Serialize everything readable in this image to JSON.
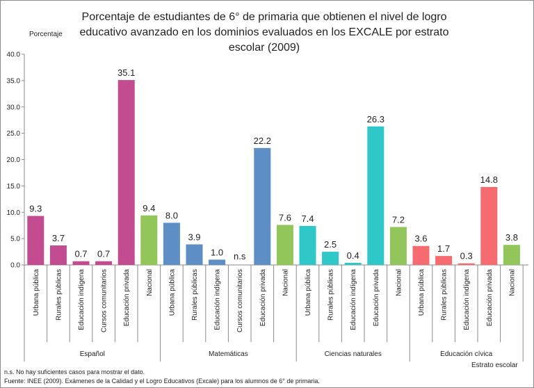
{
  "chart_data": {
    "type": "bar",
    "title": "Porcentaje de estudiantes de 6° de primaria que obtienen el nivel de logro educativo avanzado en los dominios evaluados en los EXCALE por estrato escolar (2009)",
    "ylabel": "Porcentaje",
    "xlabel": "Estrato escolar",
    "ylim": [
      0,
      40
    ],
    "yticks": [
      "0.0",
      "5.0",
      "10.0",
      "15.0",
      "20.0",
      "25.0",
      "30.0",
      "35.0",
      "40.0"
    ],
    "grid": false,
    "groups": [
      {
        "name": "Español",
        "bars": [
          {
            "label": "Urbana pública",
            "value": 9.3,
            "value_label": "9.3",
            "color": "#c34b8f"
          },
          {
            "label": "Rurales públicas",
            "value": 3.7,
            "value_label": "3.7",
            "color": "#c34b8f"
          },
          {
            "label": "Educación indígena",
            "value": 0.7,
            "value_label": "0.7",
            "color": "#c34b8f"
          },
          {
            "label": "Cursos comunitarios",
            "value": 0.7,
            "value_label": "0.7",
            "color": "#c34b8f"
          },
          {
            "label": "Educación privada",
            "value": 35.1,
            "value_label": "35.1",
            "color": "#c34b8f"
          },
          {
            "label": "Nacional",
            "value": 9.4,
            "value_label": "9.4",
            "color": "#92c65a"
          }
        ]
      },
      {
        "name": "Matemáticas",
        "bars": [
          {
            "label": "Urbana pública",
            "value": 8.0,
            "value_label": "8.0",
            "color": "#5d8ec6"
          },
          {
            "label": "Rurales públicas",
            "value": 3.9,
            "value_label": "3.9",
            "color": "#5d8ec6"
          },
          {
            "label": "Educación indígena",
            "value": 1.0,
            "value_label": "1.0",
            "color": "#5d8ec6"
          },
          {
            "label": "Cursos comunitarios",
            "value": null,
            "value_label": "n.s",
            "color": "#5d8ec6"
          },
          {
            "label": "Educación privada",
            "value": 22.2,
            "value_label": "22.2",
            "color": "#5d8ec6"
          },
          {
            "label": "Nacional",
            "value": 7.6,
            "value_label": "7.6",
            "color": "#92c65a"
          }
        ]
      },
      {
        "name": "Ciencias naturales",
        "bars": [
          {
            "label": "Urbana pública",
            "value": 7.4,
            "value_label": "7.4",
            "color": "#2ec8c8"
          },
          {
            "label": "Rurales públicas",
            "value": 2.5,
            "value_label": "2.5",
            "color": "#2ec8c8"
          },
          {
            "label": "Educación indígena",
            "value": 0.4,
            "value_label": "0.4",
            "color": "#2ec8c8"
          },
          {
            "label": "Educación privada",
            "value": 26.3,
            "value_label": "26.3",
            "color": "#2ec8c8"
          },
          {
            "label": "Nacional",
            "value": 7.2,
            "value_label": "7.2",
            "color": "#92c65a"
          }
        ]
      },
      {
        "name": "Educación cívica",
        "bars": [
          {
            "label": "Urbana pública",
            "value": 3.6,
            "value_label": "3.6",
            "color": "#f56b70"
          },
          {
            "label": "Rurales públicas",
            "value": 1.7,
            "value_label": "1.7",
            "color": "#f56b70"
          },
          {
            "label": "Educación indígena",
            "value": 0.3,
            "value_label": "0.3",
            "color": "#f56b70"
          },
          {
            "label": "Educación privada",
            "value": 14.8,
            "value_label": "14.8",
            "color": "#f56b70"
          },
          {
            "label": "Nacional",
            "value": 3.8,
            "value_label": "3.8",
            "color": "#92c65a"
          }
        ]
      }
    ]
  },
  "notes": {
    "ns": "n.s. No hay suficientes casos para mostrar el dato.",
    "source": "Fuente: INEE (2009). Exámenes de la Calidad y el Logro Educativos (Excale) para los alumnos de 6° de primaria."
  }
}
